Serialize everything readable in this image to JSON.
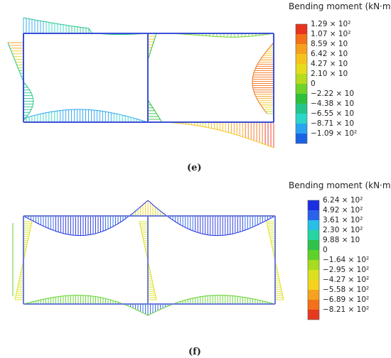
{
  "chart_data": [
    {
      "type": "other",
      "caption": "(e)",
      "legend_title": "Bending moment (kN·m)",
      "legend_labels": [
        "1.29 × 10²",
        "1.07 × 10²",
        "8.59 × 10",
        "6.42 × 10",
        "4.27 × 10",
        "2.10 × 10",
        "0",
        "−2.22 × 10",
        "−4.38 × 10",
        "−6.55 × 10",
        "−8.71 × 10",
        "−1.09 × 10²"
      ],
      "legend_values": [
        129,
        107,
        85.9,
        64.2,
        42.7,
        21.0,
        0,
        -22.2,
        -43.8,
        -65.5,
        -87.1,
        -109
      ],
      "legend_colors": [
        "#e8331f",
        "#f2711a",
        "#f7a01e",
        "#f6c31c",
        "#e6dc1d",
        "#b5dc1d",
        "#6fd22a",
        "#2fbf3a",
        "#24c58a",
        "#2bd6c8",
        "#2aa3f0",
        "#1b63e6"
      ]
    },
    {
      "type": "other",
      "caption": "(f)",
      "legend_title": "Bending moment (kN·m)",
      "legend_labels": [
        "6.24 × 10²",
        "4.92 × 10²",
        "3.61 × 10²",
        "2.30 × 10²",
        "9.88 × 10",
        "0",
        "−1.64 × 10²",
        "−2.95 × 10²",
        "−4.27 × 10²",
        "−5.58 × 10²",
        "−6.89 × 10²",
        "−8.21 × 10²"
      ],
      "legend_values": [
        624,
        492,
        361,
        230,
        98.8,
        0,
        -164,
        -295,
        -427,
        -558,
        -689,
        -821
      ],
      "legend_colors": [
        "#1c2fe0",
        "#2a63ea",
        "#27bfe6",
        "#27d5a0",
        "#2fc24a",
        "#5fd12a",
        "#a8dc1f",
        "#dbe01f",
        "#f5d21e",
        "#f6a21d",
        "#f2711a",
        "#e63a1f"
      ]
    }
  ]
}
